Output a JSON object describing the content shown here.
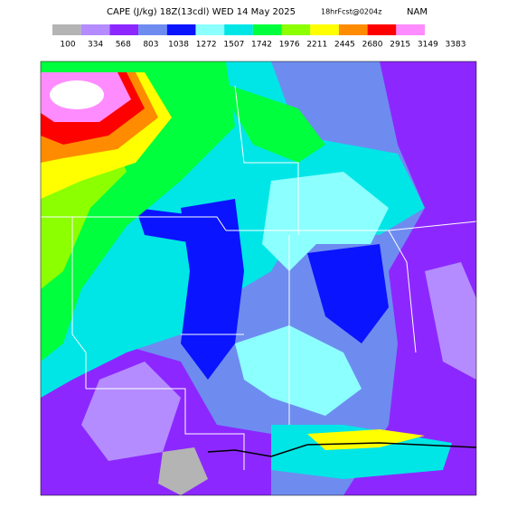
{
  "header": {
    "title": "CAPE (J/kg) 18Z(13cdl) WED 14 May 2025",
    "forecast": "18hrFcst@0204z",
    "model": "NAM"
  },
  "colorbar": {
    "colors": [
      "#b4b4b4",
      "#b48cff",
      "#8c28ff",
      "#6e8cf0",
      "#0a14ff",
      "#8cffff",
      "#00e6e6",
      "#00ff3c",
      "#8cff00",
      "#ffff00",
      "#ff8c00",
      "#ff0000",
      "#ff8cff"
    ],
    "labels": [
      100,
      334,
      568,
      803,
      1038,
      1272,
      1507,
      1742,
      1976,
      2211,
      2445,
      2680,
      2915,
      3149,
      3383
    ]
  }
}
